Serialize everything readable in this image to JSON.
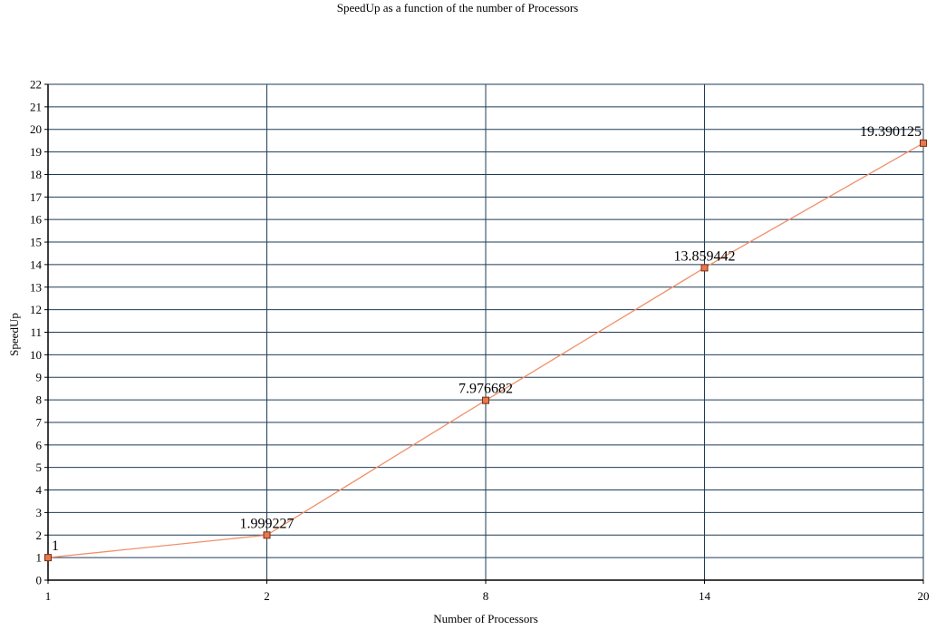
{
  "chart_data": {
    "type": "line",
    "title": "SpeedUp as a function of the number of Processors",
    "xlabel": "Number of Processors",
    "ylabel": "SpeedUp",
    "categories": [
      "1",
      "2",
      "8",
      "14",
      "20"
    ],
    "series": [
      {
        "values": [
          1,
          1.999227,
          7.976682,
          13.859442,
          19.390125
        ],
        "data_labels": [
          "1",
          "1.999227",
          "7.976682",
          "13.859442",
          "19.390125"
        ]
      }
    ],
    "ylim": [
      0,
      22
    ],
    "y_ticks": [
      "0",
      "1",
      "2",
      "3",
      "4",
      "5",
      "6",
      "7",
      "8",
      "9",
      "10",
      "11",
      "12",
      "13",
      "14",
      "15",
      "16",
      "17",
      "18",
      "19",
      "20",
      "21",
      "22"
    ],
    "grid": true,
    "legend": "none",
    "colors": {
      "line": "#f0906a",
      "marker_fill": "#e8784e",
      "marker_stroke": "#7a2e12",
      "grid": "#1f3b57",
      "axis": "#000000"
    }
  }
}
